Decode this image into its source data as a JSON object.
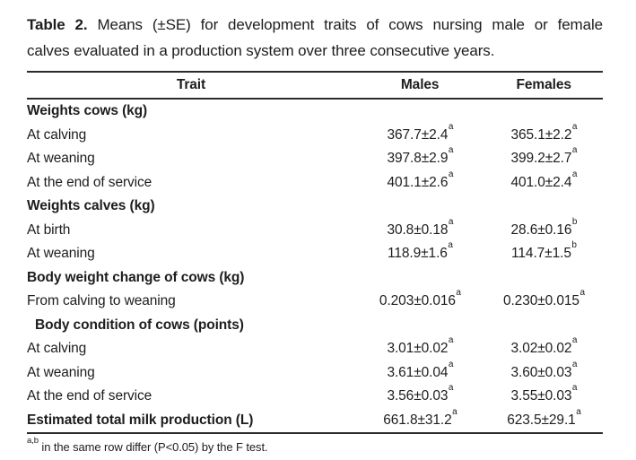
{
  "page": {
    "background_color": "#ffffff",
    "text_color": "#1d1d1d",
    "rule_color": "#2b2b2b"
  },
  "caption": {
    "label": "Table 2.",
    "line1": "Means (±SE) for development traits of cows nursing male or female",
    "line2": "calves evaluated in a production system over three consecutive years."
  },
  "table": {
    "headers": [
      "Trait",
      "Males",
      "Females"
    ],
    "rows": [
      {
        "type": "section",
        "trait": "Weights cows (kg)",
        "bold": true
      },
      {
        "type": "data",
        "trait": "At calving",
        "males": {
          "v": "367.7±2.4",
          "s": "a"
        },
        "females": {
          "v": "365.1±2.2",
          "s": "a"
        }
      },
      {
        "type": "data",
        "trait": "At weaning",
        "males": {
          "v": "397.8±2.9",
          "s": "a"
        },
        "females": {
          "v": "399.2±2.7",
          "s": "a"
        }
      },
      {
        "type": "data",
        "trait": "At the end of service",
        "males": {
          "v": "401.1±2.6",
          "s": "a"
        },
        "females": {
          "v": "401.0±2.4",
          "s": "a"
        }
      },
      {
        "type": "section",
        "trait": "Weights calves (kg)",
        "bold": true
      },
      {
        "type": "data",
        "trait": "At birth",
        "males": {
          "v": "30.8±0.18",
          "s": "a"
        },
        "females": {
          "v": "28.6±0.16",
          "s": "b"
        }
      },
      {
        "type": "data",
        "trait": "At weaning",
        "males": {
          "v": "118.9±1.6",
          "s": "a"
        },
        "females": {
          "v": "114.7±1.5",
          "s": "b"
        }
      },
      {
        "type": "section",
        "trait": "Body weight change of cows (kg)",
        "bold": true
      },
      {
        "type": "data",
        "trait": "From calving to weaning",
        "males": {
          "v": "0.203±0.016",
          "s": "a"
        },
        "females": {
          "v": "0.230±0.015",
          "s": "a"
        }
      },
      {
        "type": "section",
        "trait": "Body condition of cows (points)",
        "bold": true,
        "indent": true
      },
      {
        "type": "data",
        "trait": "At calving",
        "males": {
          "v": "3.01±0.02",
          "s": "a"
        },
        "females": {
          "v": "3.02±0.02",
          "s": "a"
        }
      },
      {
        "type": "data",
        "trait": "At weaning",
        "males": {
          "v": "3.61±0.04",
          "s": "a"
        },
        "females": {
          "v": "3.60±0.03",
          "s": "a"
        }
      },
      {
        "type": "data",
        "trait": "At the end of service",
        "males": {
          "v": "3.56±0.03",
          "s": "a"
        },
        "females": {
          "v": "3.55±0.03",
          "s": "a"
        }
      },
      {
        "type": "data",
        "trait": "Estimated total milk production (L)",
        "bold": true,
        "males": {
          "v": "661.8±31.2",
          "s": "a"
        },
        "females": {
          "v": "623.5±29.1",
          "s": "a"
        }
      }
    ]
  },
  "footnote": {
    "superscript": "a,b",
    "text": " in the same row differ (P<0.05) by the F test."
  }
}
